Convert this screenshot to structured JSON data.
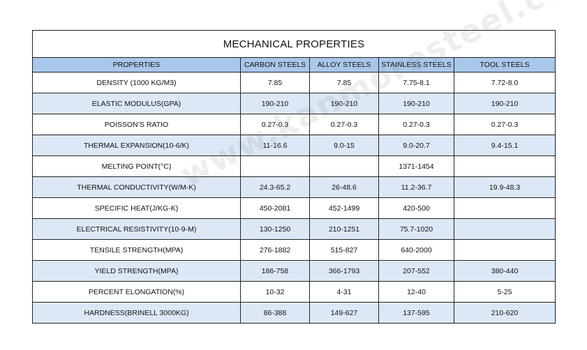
{
  "table": {
    "title": "MECHANICAL PROPERTIES",
    "headers": [
      "PROPERTIES",
      "CARBON STEELS",
      "ALLOY STEELS",
      "STAINLESS STEELS",
      "TOOL STEELS"
    ],
    "rows": [
      [
        "DENSITY (1000 KG/M3)",
        "7.85",
        "7.85",
        "7.75-8.1",
        "7.72-8.0"
      ],
      [
        "ELASTIC MODULUS(GPA)",
        "190-210",
        "190-210",
        "190-210",
        "190-210"
      ],
      [
        "POISSON’S RATIO",
        "0.27-0.3",
        "0.27-0.3",
        "0.27-0.3",
        "0.27-0.3"
      ],
      [
        "THERMAL EXPANSION(10-6/K)",
        "11-16.6",
        "9.0-15",
        "9.0-20.7",
        "9.4-15.1"
      ],
      [
        "MELTING POINT(°C)",
        "",
        "",
        "1371-1454",
        ""
      ],
      [
        "THERMAL CONDUCTIVITY(W/M-K)",
        "24.3-65.2",
        "26-48.6",
        "11.2-36.7",
        "19.9-48.3"
      ],
      [
        "SPECIFIC HEAT(J/KG-K)",
        "450-2081",
        "452-1499",
        "420-500",
        ""
      ],
      [
        "ELECTRICAL RESISTIVITY(10-9-M)",
        "130-1250",
        "210-1251",
        "75.7-1020",
        ""
      ],
      [
        "TENSILE STRENGTH(MPA)",
        "276-1882",
        "515-827",
        "640-2000",
        ""
      ],
      [
        "YIELD STRENGTH(MPA)",
        "186-758",
        "366-1793",
        "207-552",
        "380-440"
      ],
      [
        "PERCENT ELONGATION(%)",
        "10-32",
        "4-31",
        "12-40",
        "5-25"
      ],
      [
        "HARDNESS(BRINELL 3000KG)",
        "86-388",
        "149-627",
        "137-595",
        "210-620"
      ]
    ]
  },
  "watermark": "www.kanmoresteel.com",
  "colors": {
    "header_bg": "#a9c7ea",
    "alt_row_bg": "#dde8f6",
    "border": "#222222"
  }
}
